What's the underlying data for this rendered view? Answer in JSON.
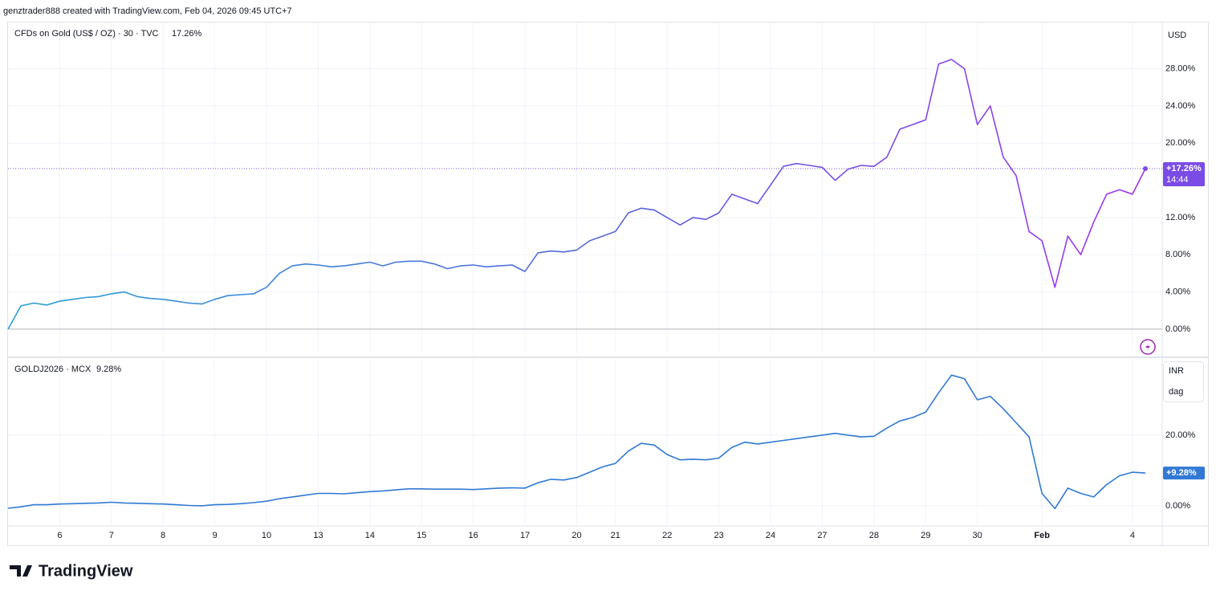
{
  "header": "genztrader888 created with TradingView.com, Feb 04, 2026 09:45 UTC+7",
  "footer": "TradingView",
  "chart_data": [
    {
      "type": "line",
      "legend_label": "CFDs on Gold (US$ / OZ) · 30 · TVC",
      "legend_value": "17.26%",
      "currency": "USD",
      "last_label": "+17.26%",
      "time_label": "14:44",
      "grid": true,
      "ylim": [
        -2.6,
        32.8
      ],
      "yticks": [
        {
          "value": 0,
          "label": "0.00%"
        },
        {
          "value": 4,
          "label": "4.00%"
        },
        {
          "value": 8,
          "label": "8.00%"
        },
        {
          "value": 12,
          "label": "12.00%"
        },
        {
          "value": 20,
          "label": "20.00%"
        },
        {
          "value": 24,
          "label": "24.00%"
        },
        {
          "value": 28,
          "label": "28.00%"
        }
      ],
      "series": [
        {
          "name": "CFDs on Gold (US$ / OZ)",
          "color": "#7b4be6",
          "gradient": [
            "#2a9fd6",
            "#5a63de",
            "#a233f0"
          ],
          "values": [
            0,
            2.5,
            2.8,
            2.6,
            3.0,
            3.2,
            3.4,
            3.5,
            3.8,
            4.0,
            3.5,
            3.3,
            3.2,
            3.0,
            2.8,
            2.7,
            3.2,
            3.6,
            3.7,
            3.8,
            4.5,
            6.0,
            6.8,
            7.0,
            6.9,
            6.7,
            6.8,
            7.0,
            7.2,
            6.8,
            7.2,
            7.3,
            7.3,
            7.0,
            6.5,
            6.8,
            6.9,
            6.7,
            6.8,
            6.9,
            6.2,
            8.2,
            8.4,
            8.3,
            8.5,
            9.5,
            10.0,
            10.5,
            12.5,
            13.0,
            12.8,
            12.0,
            11.2,
            12.0,
            11.8,
            12.5,
            14.5,
            14.0,
            13.5,
            15.5,
            17.5,
            17.8,
            17.6,
            17.4,
            16.0,
            17.2,
            17.6,
            17.5,
            18.5,
            21.5,
            22.0,
            22.5,
            28.5,
            29.0,
            28.0,
            22.0,
            24.0,
            18.5,
            16.5,
            10.5,
            9.5,
            4.5,
            10.0,
            8.0,
            11.5,
            14.5,
            15.0,
            14.5,
            17.26
          ]
        }
      ]
    },
    {
      "type": "line",
      "legend_label": "GOLDJ2026 · MCX",
      "legend_value": "9.28%",
      "currency": "INR",
      "unit": "dag",
      "last_label": "+9.28%",
      "grid": true,
      "ylim": [
        -5.7,
        40.9
      ],
      "yticks": [
        {
          "value": 0,
          "label": "0.00%"
        },
        {
          "value": 20,
          "label": "20.00%"
        }
      ],
      "categories": [
        null,
        null,
        null,
        null,
        "6",
        null,
        null,
        null,
        "7",
        null,
        null,
        null,
        "8",
        null,
        null,
        null,
        "9",
        null,
        null,
        null,
        "10",
        null,
        null,
        null,
        "13",
        null,
        null,
        null,
        "14",
        null,
        null,
        null,
        "15",
        null,
        null,
        null,
        "16",
        null,
        null,
        null,
        "17",
        null,
        null,
        null,
        "20",
        null,
        null,
        "21",
        null,
        null,
        null,
        "22",
        null,
        null,
        null,
        "23",
        null,
        null,
        null,
        "24",
        null,
        null,
        null,
        "27",
        null,
        null,
        null,
        "28",
        null,
        null,
        null,
        "29",
        null,
        null,
        null,
        "30",
        null,
        null,
        null,
        null,
        "Feb",
        null,
        null,
        null,
        null,
        null,
        null,
        "4",
        null
      ],
      "series": [
        {
          "name": "GOLDJ2026",
          "color": "#3179d4",
          "values": [
            -0.7,
            -0.3,
            0.3,
            0.3,
            0.5,
            0.6,
            0.7,
            0.8,
            1.0,
            0.8,
            0.7,
            0.6,
            0.5,
            0.3,
            0.1,
            0.0,
            0.3,
            0.4,
            0.6,
            0.9,
            1.3,
            2.0,
            2.5,
            3.0,
            3.5,
            3.5,
            3.4,
            3.7,
            4.0,
            4.2,
            4.5,
            4.8,
            4.8,
            4.7,
            4.7,
            4.7,
            4.6,
            4.8,
            5.0,
            5.1,
            5.0,
            6.5,
            7.5,
            7.3,
            8.0,
            9.5,
            11.0,
            12.0,
            15.5,
            17.7,
            17.2,
            14.5,
            13.0,
            13.2,
            13.0,
            13.5,
            16.5,
            18.0,
            17.5,
            18.0,
            18.5,
            19.0,
            19.5,
            20.0,
            20.5,
            20.0,
            19.5,
            19.7,
            22.0,
            24.0,
            25.0,
            26.5,
            32.0,
            37.0,
            36.0,
            30.0,
            31.0,
            27.5,
            23.5,
            19.5,
            3.5,
            -0.8,
            5.0,
            3.5,
            2.5,
            6.0,
            8.5,
            9.5,
            9.28
          ]
        }
      ]
    }
  ]
}
